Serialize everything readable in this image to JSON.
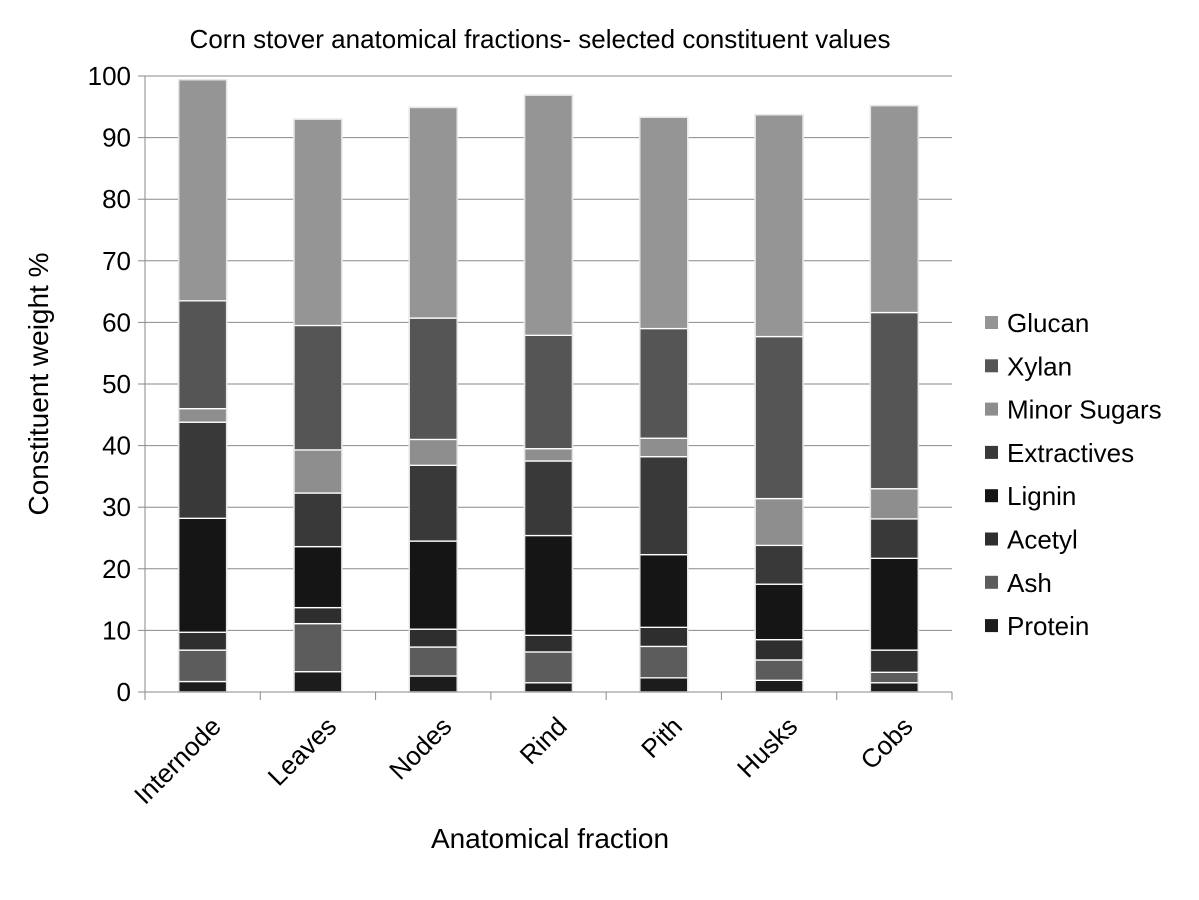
{
  "chart_data": {
    "type": "bar",
    "stacked": true,
    "title": "Corn stover anatomical fractions- selected constituent values",
    "xlabel": "Anatomical fraction",
    "ylabel": "Constituent weight %",
    "ylim": [
      0,
      100
    ],
    "yticks": [
      "0",
      "10",
      "20",
      "30",
      "40",
      "50",
      "60",
      "70",
      "80",
      "90",
      "100"
    ],
    "grid": true,
    "legend_position": "right",
    "categories": [
      "Internode",
      "Leaves",
      "Nodes",
      "Rind",
      "Pith",
      "Husks",
      "Cobs"
    ],
    "series": [
      {
        "name": "Protein",
        "color": "#1c1c1c",
        "values": [
          1.7,
          3.3,
          2.6,
          1.5,
          2.3,
          1.9,
          1.5
        ]
      },
      {
        "name": "Ash",
        "color": "#5c5c5c",
        "values": [
          5.1,
          7.8,
          4.7,
          5.0,
          5.1,
          3.3,
          1.7
        ]
      },
      {
        "name": "Acetyl",
        "color": "#2e2e2e",
        "values": [
          2.9,
          2.6,
          2.9,
          2.7,
          3.1,
          3.3,
          3.6
        ]
      },
      {
        "name": "Lignin",
        "color": "#151515",
        "values": [
          18.5,
          9.9,
          14.3,
          16.2,
          11.8,
          9.0,
          14.9
        ]
      },
      {
        "name": "Extractives",
        "color": "#393939",
        "values": [
          15.6,
          8.7,
          12.3,
          12.1,
          15.9,
          6.3,
          6.4
        ]
      },
      {
        "name": "Minor Sugars",
        "color": "#8e8e8e",
        "values": [
          2.2,
          7.0,
          4.2,
          2.0,
          3.0,
          7.6,
          4.9
        ]
      },
      {
        "name": "Xylan",
        "color": "#555555",
        "values": [
          17.5,
          20.2,
          19.7,
          18.4,
          17.8,
          26.3,
          28.6
        ]
      },
      {
        "name": "Glucan",
        "color": "#959595",
        "values": [
          35.9,
          33.5,
          34.2,
          39.0,
          34.3,
          36.0,
          33.6
        ]
      }
    ],
    "legend_order": [
      "Glucan",
      "Xylan",
      "Minor Sugars",
      "Extractives",
      "Lignin",
      "Acetyl",
      "Ash",
      "Protein"
    ]
  }
}
